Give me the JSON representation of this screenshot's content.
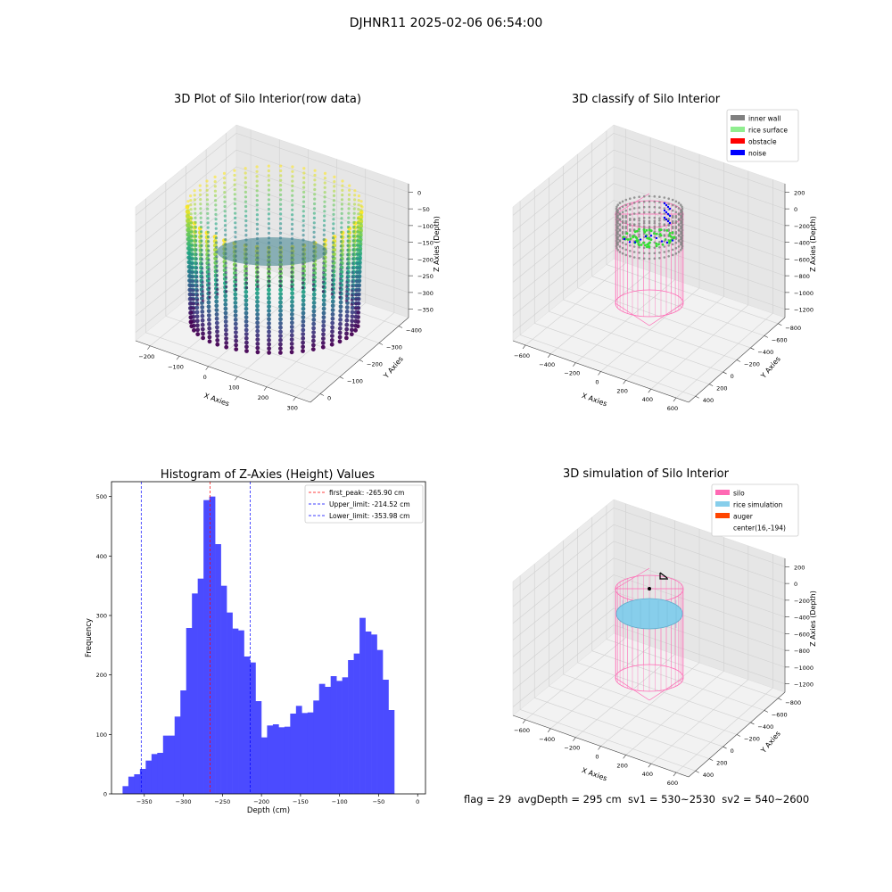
{
  "suptitle": "DJHNR11 2025-02-06 06:54:00",
  "panels": {
    "raw": {
      "title": "3D Plot of Silo Interior(row data)",
      "xlabel": "X Axies",
      "ylabel": "Y Axies",
      "zlabel": "Z Axies (Depth)",
      "xticks": [
        "−200",
        "−100",
        "0",
        "100",
        "200",
        "300"
      ],
      "yticks": [
        "−400",
        "−300",
        "−200",
        "−100",
        "0"
      ],
      "zticks": [
        "0",
        "−50",
        "−100",
        "−150",
        "−200",
        "−250",
        "−300",
        "−350"
      ]
    },
    "classify": {
      "title": "3D classify of Silo Interior",
      "xlabel": "X Axies",
      "ylabel": "Y Axies",
      "zlabel": "Z Axies (Depth)",
      "xticks": [
        "−600",
        "−400",
        "−200",
        "0",
        "200",
        "400",
        "600"
      ],
      "yticks": [
        "−800",
        "−600",
        "−400",
        "−200",
        "0",
        "200",
        "400"
      ],
      "zticks": [
        "200",
        "0",
        "−200",
        "−400",
        "−600",
        "−800",
        "−1000",
        "−1200"
      ],
      "legend": [
        {
          "label": "inner wall",
          "color": "#808080"
        },
        {
          "label": "rice surface",
          "color": "#90ee90"
        },
        {
          "label": "obstacle",
          "color": "#ff0000"
        },
        {
          "label": "noise",
          "color": "#0000ff"
        }
      ]
    },
    "simulation": {
      "title": "3D simulation of Silo Interior",
      "xlabel": "X Axies",
      "ylabel": "Y Axies",
      "zlabel": "Z Axies (Depth)",
      "xticks": [
        "−600",
        "−400",
        "−200",
        "0",
        "200",
        "400",
        "600"
      ],
      "yticks": [
        "−800",
        "−600",
        "−400",
        "−200",
        "0",
        "200",
        "400"
      ],
      "zticks": [
        "200",
        "0",
        "−200",
        "−400",
        "−600",
        "−800",
        "−1000",
        "−1200"
      ],
      "legend": [
        {
          "label": "silo",
          "color": "#ff69b4"
        },
        {
          "label": "rice simulation",
          "color": "#87ceeb"
        },
        {
          "label": "auger",
          "color": "#ff4500"
        },
        {
          "label": "center(16,-194)",
          "color": ""
        }
      ]
    }
  },
  "footer": "flag = 29  avgDepth = 295 cm  sv1 = 530~2530  sv2 = 540~2600",
  "chart_data": {
    "type": "bar",
    "title": "Histogram of Z-Axies (Height) Values",
    "xlabel": "Depth (cm)",
    "ylabel": "Frequency",
    "xlim": [
      -392,
      10
    ],
    "ylim": [
      0,
      525
    ],
    "xticks": [
      -350,
      -300,
      -250,
      -200,
      -150,
      -100,
      -50,
      0
    ],
    "xtick_labels": [
      "−350",
      "−300",
      "−250",
      "−200",
      "−150",
      "−100",
      "−50",
      "0"
    ],
    "yticks": [
      0,
      100,
      200,
      300,
      400,
      500
    ],
    "bar_color": "#4b4bff",
    "bin_start": -377.8,
    "bin_width": 7.4,
    "values": [
      13,
      29,
      33,
      42,
      56,
      67,
      69,
      98,
      98,
      130,
      174,
      279,
      337,
      362,
      494,
      500,
      420,
      350,
      305,
      278,
      275,
      231,
      221,
      156,
      95,
      115,
      117,
      112,
      113,
      135,
      148,
      136,
      137,
      157,
      185,
      180,
      198,
      190,
      196,
      225,
      236,
      296,
      273,
      268,
      242,
      192,
      141
    ],
    "lines": [
      {
        "label": "first_peak: -265.90 cm",
        "x": -265.9,
        "color": "#ff0000"
      },
      {
        "label": "Upper_limit: -214.52 cm",
        "x": -214.52,
        "color": "#0000ff"
      },
      {
        "label": "Lower_limit: -353.98 cm",
        "x": -353.98,
        "color": "#0000ff"
      }
    ]
  }
}
